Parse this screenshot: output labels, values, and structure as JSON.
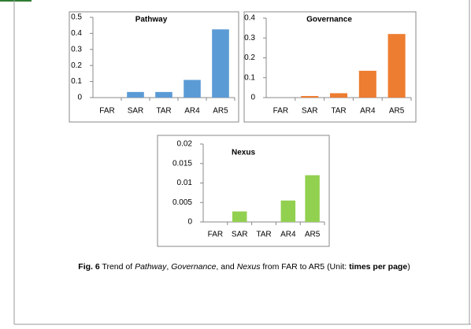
{
  "chart_data": [
    {
      "type": "bar",
      "title": "Pathway",
      "categories": [
        "FAR",
        "SAR",
        "TAR",
        "AR4",
        "AR5"
      ],
      "values": [
        0,
        0.035,
        0.035,
        0.11,
        0.425
      ],
      "color": "#5b9bd5",
      "ylim": [
        0,
        0.5
      ],
      "yticks": [
        0,
        0.1,
        0.2,
        0.3,
        0.4,
        0.5
      ]
    },
    {
      "type": "bar",
      "title": "Governance",
      "categories": [
        "FAR",
        "SAR",
        "TAR",
        "AR4",
        "AR5"
      ],
      "values": [
        0,
        0.008,
        0.022,
        0.135,
        0.32
      ],
      "color": "#ed7d31",
      "ylim": [
        0,
        0.4
      ],
      "yticks": [
        0,
        0.1,
        0.2,
        0.3,
        0.4
      ]
    },
    {
      "type": "bar",
      "title": "Nexus",
      "categories": [
        "FAR",
        "SAR",
        "TAR",
        "AR4",
        "AR5"
      ],
      "values": [
        0,
        0.0027,
        0,
        0.0055,
        0.012
      ],
      "color": "#92d050",
      "ylim": [
        0,
        0.02
      ],
      "yticks": [
        0,
        0.005,
        0.01,
        0.015,
        0.02
      ]
    }
  ],
  "caption": {
    "parts": [
      {
        "text": "Fig. 6",
        "style": "bold"
      },
      {
        "text": " Trend of ",
        "style": "normal"
      },
      {
        "text": "Pathway",
        "style": "italic"
      },
      {
        "text": ", ",
        "style": "normal"
      },
      {
        "text": "Governance",
        "style": "italic"
      },
      {
        "text": ", and ",
        "style": "normal"
      },
      {
        "text": "Nexus",
        "style": "italic"
      },
      {
        "text": " from FAR to AR5 (Unit: ",
        "style": "normal"
      },
      {
        "text": "times per page",
        "style": "bold"
      },
      {
        "text": ")",
        "style": "normal"
      }
    ]
  }
}
